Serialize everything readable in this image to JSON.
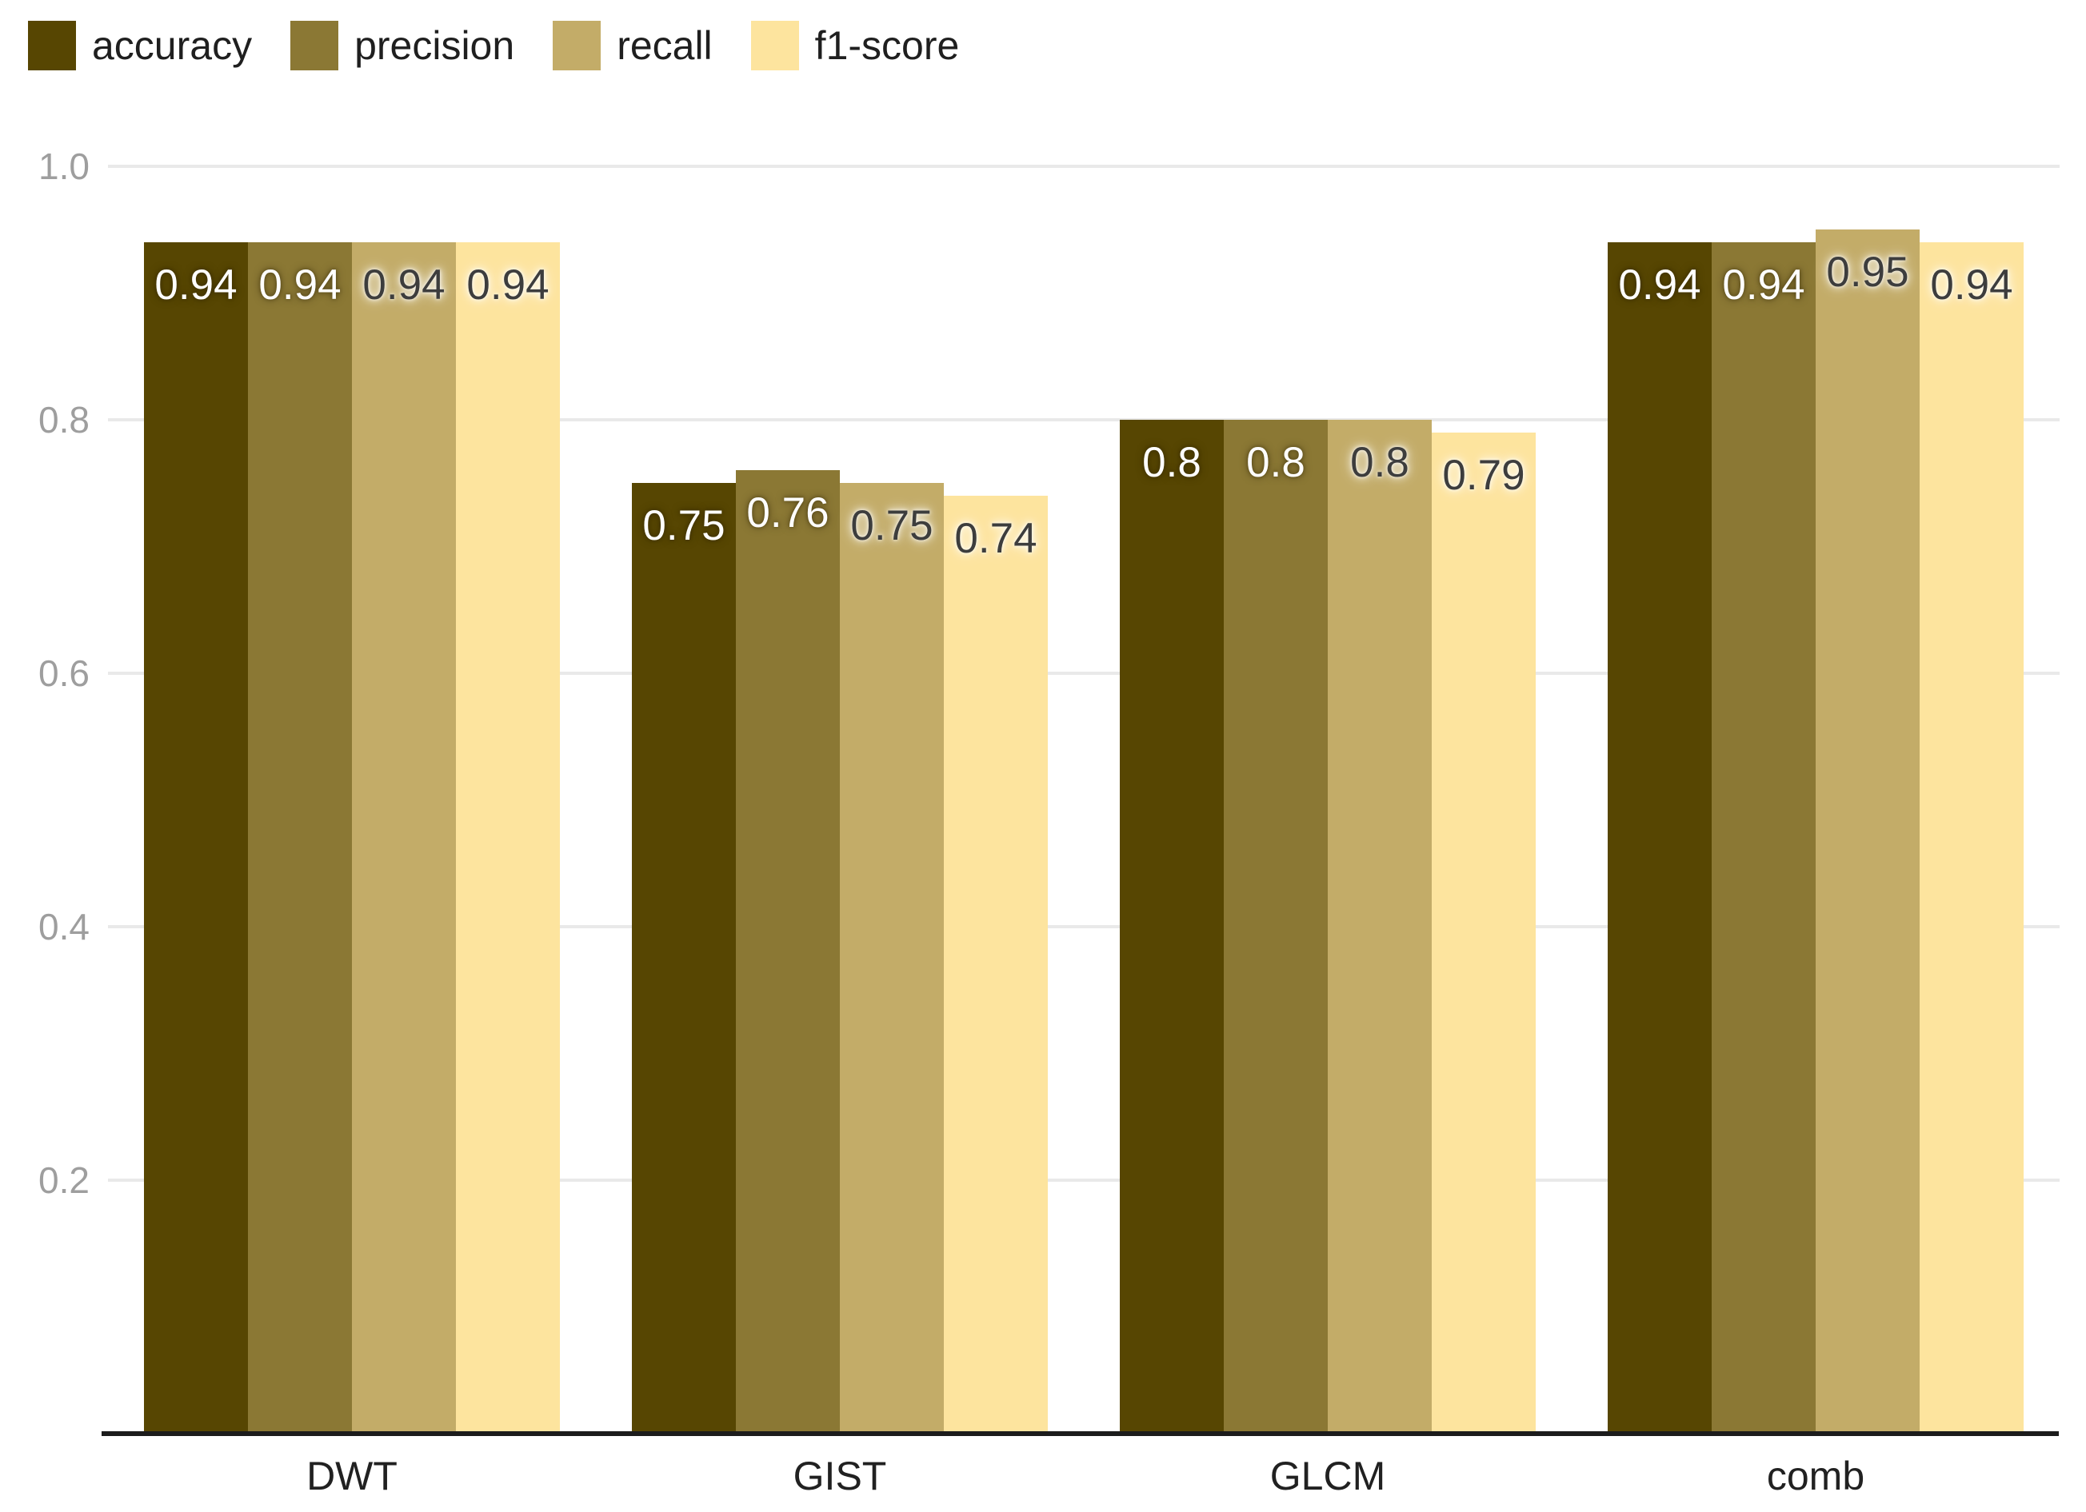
{
  "chart_data": {
    "type": "bar",
    "title": "",
    "xlabel": "",
    "ylabel": "",
    "categories": [
      "DWT",
      "GIST",
      "GLCM",
      "comb"
    ],
    "series": [
      {
        "name": "accuracy",
        "color": "#574602",
        "values": [
          0.94,
          0.75,
          0.8,
          0.94
        ],
        "labels": [
          "0.94",
          "0.75",
          "0.8",
          "0.94"
        ]
      },
      {
        "name": "precision",
        "color": "#8b7834",
        "values": [
          0.94,
          0.76,
          0.8,
          0.94
        ],
        "labels": [
          "0.94",
          "0.76",
          "0.8",
          "0.94"
        ]
      },
      {
        "name": "recall",
        "color": "#c3ac68",
        "values": [
          0.94,
          0.75,
          0.8,
          0.95
        ],
        "labels": [
          "0.94",
          "0.75",
          "0.8",
          "0.95"
        ]
      },
      {
        "name": "f1-score",
        "color": "#fde49e",
        "values": [
          0.94,
          0.74,
          0.79,
          0.94
        ],
        "labels": [
          "0.94",
          "0.74",
          "0.79",
          "0.94"
        ]
      }
    ],
    "y_ticks": [
      {
        "value": 1.0,
        "label": "1.0"
      },
      {
        "value": 0.8,
        "label": "0.8"
      },
      {
        "value": 0.6,
        "label": "0.6"
      },
      {
        "value": 0.4,
        "label": "0.4"
      },
      {
        "value": 0.2,
        "label": "0.2"
      }
    ],
    "ylim": [
      0,
      1.0
    ],
    "grid": true,
    "legend_position": "top-left",
    "colors": {
      "background": "#ffffff",
      "gridline": "#e9e9e9",
      "axis_line": "#1c1c1c",
      "y_tick_label": "#9e9e9e",
      "x_tick_label": "#212121",
      "legend_label": "#1f1f1f",
      "value_label_on_dark": "#ffffff",
      "value_label_on_light": "#3d3d3d"
    }
  }
}
